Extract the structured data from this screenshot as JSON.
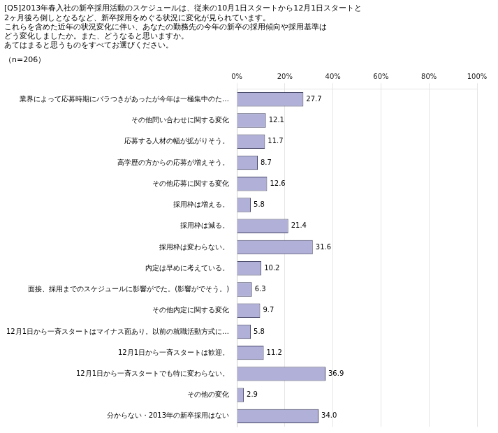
{
  "chart_data": {
    "type": "bar",
    "orientation": "horizontal",
    "title": [
      "[Q5]2013年春入社の新卒採用活動のスケジュールは、従来の10月1日スタートから12月1日スタートと",
      "2ヶ月後ろ倒しとなるなど、新卒採用をめぐる状況に変化が見られています。",
      "これらを含めた近年の状況変化に伴い、あなたの勤務先の今年の新卒の採用傾向や採用基準は",
      "どう変化しましたか。また、どうなると思いますか。",
      "あてはまると思うものをすべてお選びください。"
    ],
    "subtitle": "（n=206）",
    "categories": [
      "業界によって応募時期にバラつきがあったが今年は一極集中のた…",
      "その他問い合わせに関する変化",
      "応募する人材の幅が拡がりそう。",
      "高学歴の方からの応募が増えそう。",
      "その他応募に関する変化",
      "採用枠は増える。",
      "採用枠は減る。",
      "採用枠は変わらない。",
      "内定は早めに考えている。",
      "面接、採用までのスケジュールに影響がでた。(影響がでそう。)",
      "その他内定に関する変化",
      "12月1日から一斉スタートはマイナス面あり。以前の就職活動方式に…",
      "12月1日から一斉スタートは歓迎。",
      "12月1日から一斉スタートでも特に変わらない。",
      "その他の変化",
      "分からない・2013年の新卒採用はない"
    ],
    "values": [
      27.7,
      12.1,
      11.7,
      8.7,
      12.6,
      5.8,
      21.4,
      31.6,
      10.2,
      6.3,
      9.7,
      5.8,
      11.2,
      36.9,
      2.9,
      34.0
    ],
    "value_labels": [
      "27.7",
      "12.1",
      "11.7",
      "8.7",
      "12.6",
      "5.8",
      "21.4",
      "31.6",
      "10.2",
      "6.3",
      "9.7",
      "5.8",
      "11.2",
      "36.9",
      "2.9",
      "34.0"
    ],
    "data_labels": true,
    "color": "#b0b0d8",
    "xlim": [
      0,
      100
    ],
    "xticks": [
      {
        "value": 0,
        "label": "0%"
      },
      {
        "value": 20,
        "label": "20%"
      },
      {
        "value": 40,
        "label": "40%"
      },
      {
        "value": 60,
        "label": "60%"
      },
      {
        "value": 80,
        "label": "80%"
      },
      {
        "value": 100,
        "label": "100%"
      }
    ],
    "grid": true
  }
}
